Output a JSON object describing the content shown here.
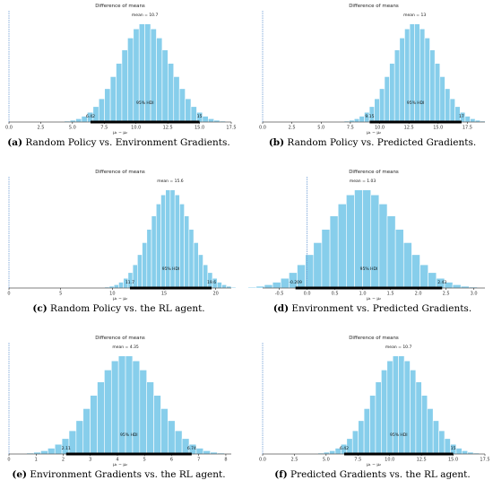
{
  "chart_data": [
    {
      "type": "bar",
      "panel_letter": "(a)",
      "caption": " Random Policy vs. Environment Gradients.",
      "title": "Difference of means",
      "xlabel": "μ₁ − μ₂",
      "mean_label": "mean = 10.7",
      "mean": 10.7,
      "sd": 2.0,
      "hdi_label": "95% HDI",
      "hdi": [
        6.42,
        15
      ],
      "hdi_low_label": "6.42",
      "hdi_high_label": "15",
      "xlim": [
        0,
        17.5
      ],
      "xticks": [
        "0.0",
        "2.5",
        "5.0",
        "7.5",
        "10.0",
        "12.5",
        "15.0",
        "17.5"
      ],
      "xtick_values": [
        0,
        2.5,
        5,
        7.5,
        10,
        12.5,
        15,
        17.5
      ],
      "ref_value": 0
    },
    {
      "type": "bar",
      "panel_letter": "(b)",
      "caption": " Random Policy vs. Predicted Gradients.",
      "title": "Difference of means",
      "xlabel": "μ₁ − μ₂",
      "mean_label": "mean = 13",
      "mean": 13,
      "sd": 1.9,
      "hdi_label": "95% HDI",
      "hdi": [
        9.15,
        17
      ],
      "hdi_low_label": "9.15",
      "hdi_high_label": "17",
      "xlim": [
        0,
        19
      ],
      "xticks": [
        "0.0",
        "2.5",
        "5.0",
        "7.5",
        "10.0",
        "12.5",
        "15.0",
        "17.5"
      ],
      "xtick_values": [
        0,
        2.5,
        5,
        7.5,
        10,
        12.5,
        15,
        17.5
      ],
      "ref_value": 0
    },
    {
      "type": "bar",
      "panel_letter": "(c)",
      "caption": " Random Policy vs. the RL agent.",
      "title": "Difference of means",
      "xlabel": "μ₁ − μ₂",
      "mean_label": "mean = 15.6",
      "mean": 15.6,
      "sd": 2.0,
      "hdi_label": "95% HDI",
      "hdi": [
        11.7,
        19.6
      ],
      "hdi_low_label": "11.7",
      "hdi_high_label": "19.6",
      "xlim": [
        0,
        21.5
      ],
      "xticks": [
        "0",
        "5",
        "10",
        "15",
        "20"
      ],
      "xtick_values": [
        0,
        5,
        10,
        15,
        20
      ],
      "ref_value": 0
    },
    {
      "type": "bar",
      "panel_letter": "(d)",
      "caption": " Environment vs. Predicted Gradients.",
      "title": "Difference of means",
      "xlabel": "μ₁ − μ₂",
      "mean_label": "mean = 1.03",
      "mean": 1.0,
      "sd": 0.65,
      "hdi_label": "95% HDI",
      "hdi": [
        -0.209,
        2.43
      ],
      "hdi_low_label": "-0.209",
      "hdi_high_label": "2.43",
      "xlim": [
        -0.8,
        3.2
      ],
      "xticks": [
        "-0.5",
        "0.0",
        "0.5",
        "1.0",
        "1.5",
        "2.0",
        "2.5",
        "3.0"
      ],
      "xtick_values": [
        -0.5,
        0,
        0.5,
        1,
        1.5,
        2,
        2.5,
        3
      ],
      "ref_value": 0
    },
    {
      "type": "bar",
      "panel_letter": "(e)",
      "caption": " Environment Gradients vs. the RL agent.",
      "title": "Difference of means",
      "xlabel": "μ₁ − μ₂",
      "mean_label": "mean = 4.35",
      "mean": 4.3,
      "sd": 1.15,
      "hdi_label": "95% HDI",
      "hdi": [
        2.11,
        6.74
      ],
      "hdi_low_label": "2.11",
      "hdi_high_label": "6.74",
      "xlim": [
        0,
        8.2
      ],
      "xticks": [
        "0",
        "1",
        "2",
        "3",
        "4",
        "5",
        "6",
        "7",
        "8"
      ],
      "xtick_values": [
        0,
        1,
        2,
        3,
        4,
        5,
        6,
        7,
        8
      ],
      "ref_value": 0
    },
    {
      "type": "bar",
      "panel_letter": "(f)",
      "caption": " Predicted Gradients vs. the RL agent.",
      "title": "Difference of means",
      "xlabel": "μ₁ − μ₂",
      "mean_label": "mean = 10.7",
      "mean": 10.7,
      "sd": 2.0,
      "hdi_label": "95% HDI",
      "hdi": [
        6.42,
        15
      ],
      "hdi_low_label": "6.42",
      "hdi_high_label": "15",
      "xlim": [
        0,
        17.5
      ],
      "xticks": [
        "0.0",
        "2.5",
        "5.0",
        "7.5",
        "10.0",
        "12.5",
        "15.0",
        "17.5"
      ],
      "xtick_values": [
        0,
        2.5,
        5,
        7.5,
        10,
        12.5,
        15,
        17.5
      ],
      "ref_value": 0
    }
  ],
  "colors": {
    "bar": "#87ceeb",
    "bar_edge": "#ffffff",
    "ref_line": "#7da7d9",
    "hdi_bar": "#000000",
    "axis": "#000000"
  }
}
